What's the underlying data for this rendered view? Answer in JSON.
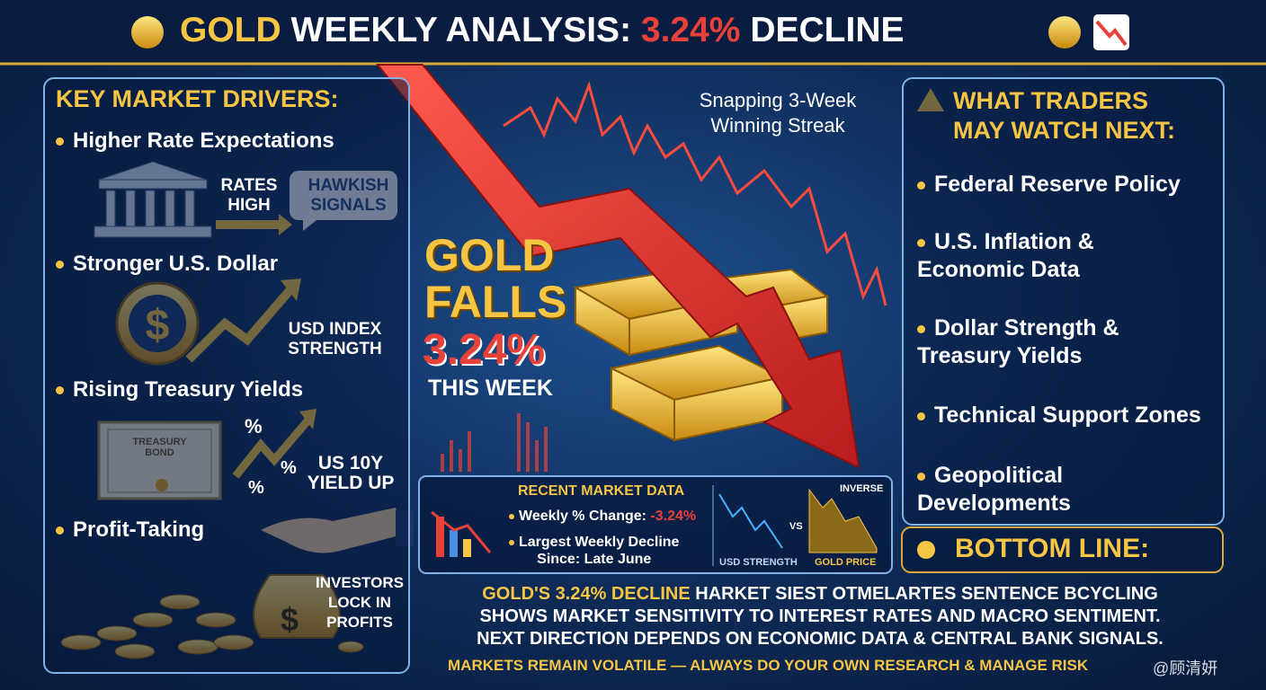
{
  "header": {
    "title_parts": [
      "GOLD",
      "WEEKLY ANALYSIS:",
      "3.24%",
      "DECLINE"
    ]
  },
  "drivers": {
    "title": "KEY MARKET DRIVERS:",
    "items": [
      {
        "label": "Higher Rate Expectations",
        "captions": [
          "RATES HIGH",
          "HAWKISH SIGNALS"
        ]
      },
      {
        "label": "Stronger U.S. Dollar",
        "captions": [
          "USD INDEX STRENGTH"
        ]
      },
      {
        "label": "Rising Treasury Yields",
        "captions": [
          "TREASURY BOND",
          "%",
          "%",
          "%",
          "US 10Y YIELD UP"
        ]
      },
      {
        "label": "Profit-Taking",
        "captions": [
          "INVESTORS LOCK IN PROFITS"
        ]
      }
    ]
  },
  "center": {
    "streak": "Snapping 3-Week Winning Streak",
    "headline": "GOLD FALLS",
    "change": "3.24%",
    "period": "THIS WEEK",
    "market_data": {
      "title": "RECENT MARKET DATA",
      "rows": [
        {
          "label": "Weekly % Change:",
          "value": "-3.24%"
        },
        {
          "lines": [
            "Largest Weekly Decline",
            "Since: Late June"
          ]
        }
      ],
      "chart_labels": [
        "USD STRENGTH",
        "VS",
        "GOLD PRICE",
        "INVERSE"
      ]
    }
  },
  "watch": {
    "title": "WHAT TRADERS MAY WATCH NEXT:",
    "items": [
      "Federal Reserve Policy",
      "U.S. Inflation & Economic Data",
      "Dollar Strength & Treasury Yields",
      "Technical Support Zones",
      "Geopolitical Developments"
    ]
  },
  "bottom_line": {
    "title": "BOTTOM LINE:",
    "highlight": "GOLD'S 3.24% DECLINE",
    "lines": [
      "HARKET SIEST OTMELARTES SENTENCE BCYCLING",
      "SHOWS MARKET SENSITIVITY TO INTEREST RATES AND MACRO SENTIMENT.",
      "NEXT DIRECTION DEPENDS ON ECONOMIC DATA & CENTRAL BANK SIGNALS."
    ],
    "disclaimer": "MARKETS REMAIN VOLATILE — ALWAYS DO YOUR OWN RESEARCH & MANAGE RISK"
  },
  "watermark": "@顾清妍"
}
